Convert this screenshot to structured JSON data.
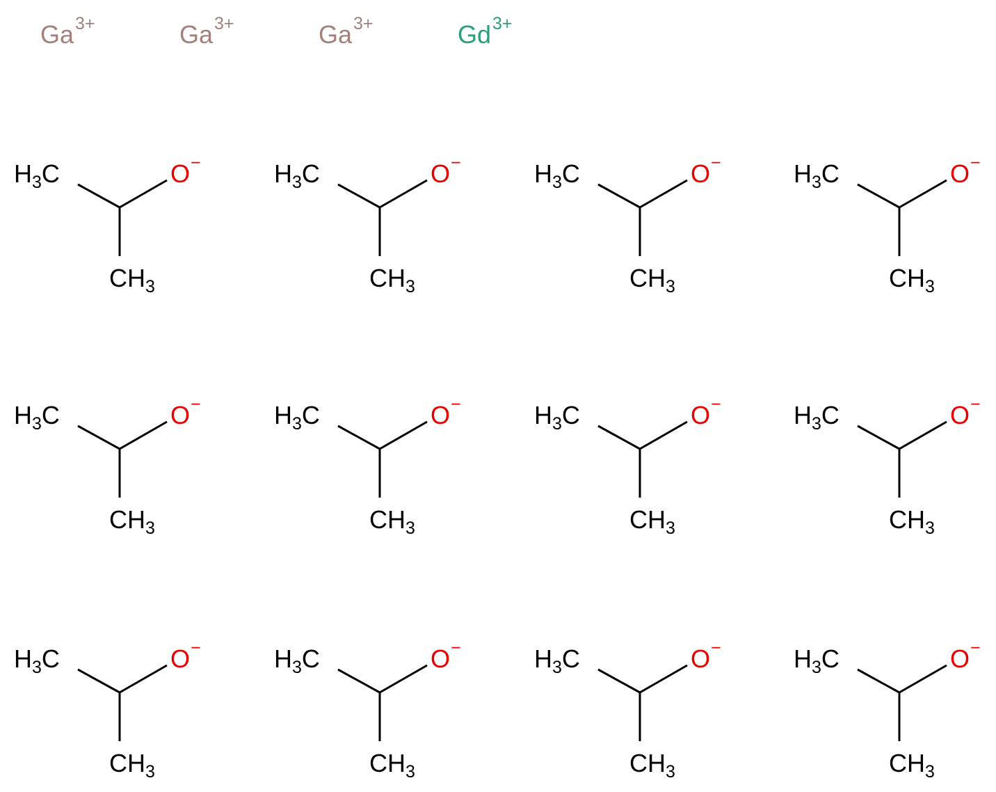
{
  "ions": [
    {
      "symbol": "Ga",
      "charge": "3+"
    },
    {
      "symbol": "Ga",
      "charge": "3+"
    },
    {
      "symbol": "Ga",
      "charge": "3+"
    },
    {
      "symbol": "Gd",
      "charge": "3+"
    }
  ],
  "molecules": [
    {
      "left": [
        "H",
        "3",
        "C"
      ],
      "oxygen": "O",
      "charge": "−",
      "bottom": [
        "C",
        "H",
        "3"
      ]
    },
    {
      "left": [
        "H",
        "3",
        "C"
      ],
      "oxygen": "O",
      "charge": "−",
      "bottom": [
        "C",
        "H",
        "3"
      ]
    },
    {
      "left": [
        "H",
        "3",
        "C"
      ],
      "oxygen": "O",
      "charge": "−",
      "bottom": [
        "C",
        "H",
        "3"
      ]
    },
    {
      "left": [
        "H",
        "3",
        "C"
      ],
      "oxygen": "O",
      "charge": "−",
      "bottom": [
        "C",
        "H",
        "3"
      ]
    },
    {
      "left": [
        "H",
        "3",
        "C"
      ],
      "oxygen": "O",
      "charge": "−",
      "bottom": [
        "C",
        "H",
        "3"
      ]
    },
    {
      "left": [
        "H",
        "3",
        "C"
      ],
      "oxygen": "O",
      "charge": "−",
      "bottom": [
        "C",
        "H",
        "3"
      ]
    },
    {
      "left": [
        "H",
        "3",
        "C"
      ],
      "oxygen": "O",
      "charge": "−",
      "bottom": [
        "C",
        "H",
        "3"
      ]
    },
    {
      "left": [
        "H",
        "3",
        "C"
      ],
      "oxygen": "O",
      "charge": "−",
      "bottom": [
        "C",
        "H",
        "3"
      ]
    },
    {
      "left": [
        "H",
        "3",
        "C"
      ],
      "oxygen": "O",
      "charge": "−",
      "bottom": [
        "C",
        "H",
        "3"
      ]
    },
    {
      "left": [
        "H",
        "3",
        "C"
      ],
      "oxygen": "O",
      "charge": "−",
      "bottom": [
        "C",
        "H",
        "3"
      ]
    },
    {
      "left": [
        "H",
        "3",
        "C"
      ],
      "oxygen": "O",
      "charge": "−",
      "bottom": [
        "C",
        "H",
        "3"
      ]
    },
    {
      "left": [
        "H",
        "3",
        "C"
      ],
      "oxygen": "O",
      "charge": "−",
      "bottom": [
        "C",
        "H",
        "3"
      ]
    }
  ]
}
